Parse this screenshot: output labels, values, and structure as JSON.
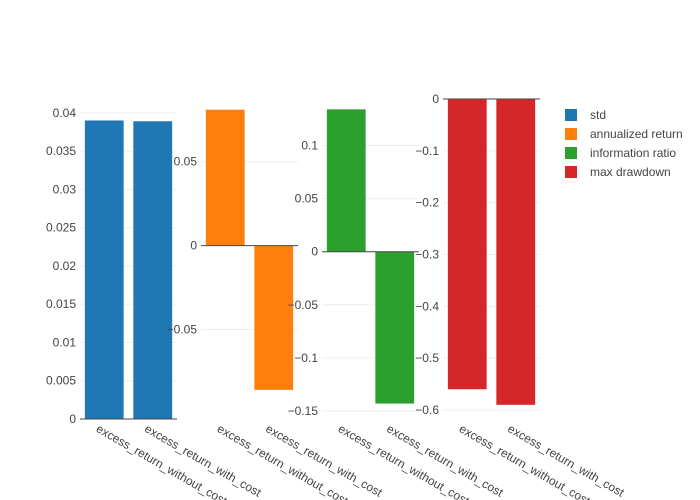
{
  "chart_data": [
    {
      "type": "bar",
      "series_name": "std",
      "categories": [
        "excess_return_without_cost",
        "excess_return_with_cost"
      ],
      "values": [
        0.039,
        0.0389
      ],
      "ylim": [
        0,
        0.0405
      ],
      "yticks": [
        0,
        0.005,
        0.01,
        0.015,
        0.02,
        0.025,
        0.03,
        0.035,
        0.04
      ],
      "ytick_labels": [
        "0",
        "0.005",
        "0.01",
        "0.015",
        "0.02",
        "0.025",
        "0.03",
        "0.035",
        "0.04"
      ]
    },
    {
      "type": "bar",
      "series_name": "annualized return",
      "categories": [
        "excess_return_without_cost",
        "excess_return_with_cost"
      ],
      "values": [
        0.081,
        -0.086
      ],
      "ylim": [
        -0.095,
        0.085
      ],
      "yticks": [
        -0.05,
        0,
        0.05
      ],
      "ytick_labels": [
        "−0.05",
        "0",
        "0.05"
      ]
    },
    {
      "type": "bar",
      "series_name": "information ratio",
      "categories": [
        "excess_return_without_cost",
        "excess_return_with_cost"
      ],
      "values": [
        0.134,
        -0.143
      ],
      "ylim": [
        -0.15,
        0.14
      ],
      "yticks": [
        -0.15,
        -0.1,
        -0.05,
        0,
        0.05,
        0.1
      ],
      "ytick_labels": [
        "−0.15",
        "−0.1",
        "−0.05",
        "0",
        "0.05",
        "0.1"
      ]
    },
    {
      "type": "bar",
      "series_name": "max drawdown",
      "categories": [
        "excess_return_without_cost",
        "excess_return_with_cost"
      ],
      "values": [
        -0.56,
        -0.59
      ],
      "ylim": [
        -0.6,
        0
      ],
      "yticks": [
        -0.6,
        -0.5,
        -0.4,
        -0.3,
        -0.2,
        -0.1,
        0
      ],
      "ytick_labels": [
        "−0.6",
        "−0.5",
        "−0.4",
        "−0.3",
        "−0.2",
        "−0.1",
        "0"
      ]
    }
  ],
  "legend": {
    "position": "top-right",
    "items": [
      {
        "label": "std",
        "color": "#1f77b4"
      },
      {
        "label": "annualized return",
        "color": "#ff7f0e"
      },
      {
        "label": "information ratio",
        "color": "#2ca02c"
      },
      {
        "label": "max drawdown",
        "color": "#d62728"
      }
    ]
  },
  "grid": true,
  "colors": {
    "grid": "#eeeeee",
    "axis": "#444444",
    "text": "#444444"
  }
}
